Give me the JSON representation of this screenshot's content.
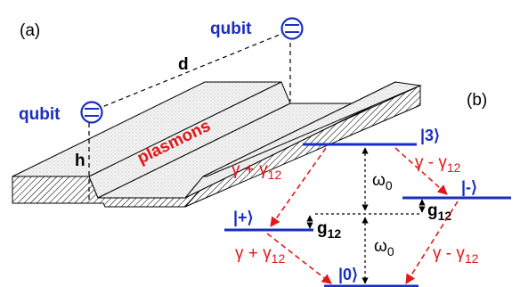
{
  "panel_a": {
    "label": "(a)",
    "qubit_top": "qubit",
    "qubit_left": "qubit",
    "distance": "d",
    "height": "h",
    "plasmons": "plasmons"
  },
  "panel_b": {
    "label": "(b)",
    "levels": {
      "top": "|3⟩",
      "plus": "|+⟩",
      "minus": "|-⟩",
      "ground": "|0⟩"
    },
    "omega": "ω",
    "omega_sub": "0",
    "g": "g",
    "g_sub": "12",
    "rates": {
      "gamma": "γ",
      "sub": "12",
      "plus_label": "γ + γ",
      "minus_label": "γ - γ"
    }
  },
  "colors": {
    "qubit": "#1a2fbf",
    "plasmon": "#e01818",
    "level": "#1a2fbf",
    "arrow": "#e01818"
  }
}
